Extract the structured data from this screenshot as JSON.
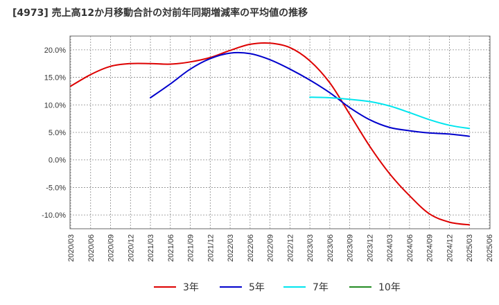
{
  "chart_data": {
    "type": "line",
    "title": "[4973]  売上高12か月移動合計の対前年同期増減率の平均値の推移",
    "xlabel": "",
    "ylabel": "",
    "ylim": [
      -12.5,
      22.5
    ],
    "y_ticks": [
      {
        "value": 20,
        "label": "20.0%"
      },
      {
        "value": 15,
        "label": "15.0%"
      },
      {
        "value": 10,
        "label": "10.0%"
      },
      {
        "value": 5,
        "label": "5.0%"
      },
      {
        "value": 0,
        "label": "0.0%"
      },
      {
        "value": -5,
        "label": "-5.0%"
      },
      {
        "value": -10,
        "label": "-10.0%"
      }
    ],
    "x_ticks": [
      "2020/03",
      "2020/06",
      "2020/09",
      "2020/12",
      "2021/03",
      "2021/06",
      "2021/09",
      "2021/12",
      "2022/03",
      "2022/06",
      "2022/09",
      "2022/12",
      "2023/03",
      "2023/06",
      "2023/09",
      "2023/12",
      "2024/03",
      "2024/06",
      "2024/09",
      "2024/12",
      "2025/03",
      "2025/06"
    ],
    "grid": true,
    "legend_position": "bottom",
    "series": [
      {
        "name": "3年",
        "color": "#dd0000",
        "points": [
          [
            "2020/03",
            13.4
          ],
          [
            "2020/06",
            15.5
          ],
          [
            "2020/09",
            17.0
          ],
          [
            "2020/12",
            17.5
          ],
          [
            "2021/03",
            17.5
          ],
          [
            "2021/06",
            17.4
          ],
          [
            "2021/09",
            17.8
          ],
          [
            "2021/12",
            18.6
          ],
          [
            "2022/03",
            19.9
          ],
          [
            "2022/06",
            21.0
          ],
          [
            "2022/09",
            21.2
          ],
          [
            "2022/12",
            20.4
          ],
          [
            "2023/03",
            18.0
          ],
          [
            "2023/06",
            14.0
          ],
          [
            "2023/09",
            8.3
          ],
          [
            "2023/12",
            2.5
          ],
          [
            "2024/03",
            -2.5
          ],
          [
            "2024/06",
            -6.5
          ],
          [
            "2024/09",
            -9.8
          ],
          [
            "2024/12",
            -11.3
          ],
          [
            "2025/03",
            -11.8
          ]
        ]
      },
      {
        "name": "5年",
        "color": "#0000cc",
        "points": [
          [
            "2021/03",
            11.3
          ],
          [
            "2021/06",
            13.8
          ],
          [
            "2021/09",
            16.5
          ],
          [
            "2021/12",
            18.4
          ],
          [
            "2022/03",
            19.4
          ],
          [
            "2022/06",
            19.3
          ],
          [
            "2022/09",
            18.2
          ],
          [
            "2022/12",
            16.5
          ],
          [
            "2023/03",
            14.5
          ],
          [
            "2023/06",
            12.2
          ],
          [
            "2023/09",
            9.5
          ],
          [
            "2023/12",
            7.3
          ],
          [
            "2024/03",
            5.9
          ],
          [
            "2024/06",
            5.3
          ],
          [
            "2024/09",
            4.9
          ],
          [
            "2024/12",
            4.7
          ],
          [
            "2025/03",
            4.3
          ]
        ]
      },
      {
        "name": "7年",
        "color": "#00e5ee",
        "points": [
          [
            "2023/03",
            11.4
          ],
          [
            "2023/06",
            11.3
          ],
          [
            "2023/09",
            11.0
          ],
          [
            "2023/12",
            10.6
          ],
          [
            "2024/03",
            9.8
          ],
          [
            "2024/06",
            8.6
          ],
          [
            "2024/09",
            7.3
          ],
          [
            "2024/12",
            6.3
          ],
          [
            "2025/03",
            5.7
          ]
        ]
      },
      {
        "name": "10年",
        "color": "#228b22",
        "points": []
      }
    ]
  }
}
